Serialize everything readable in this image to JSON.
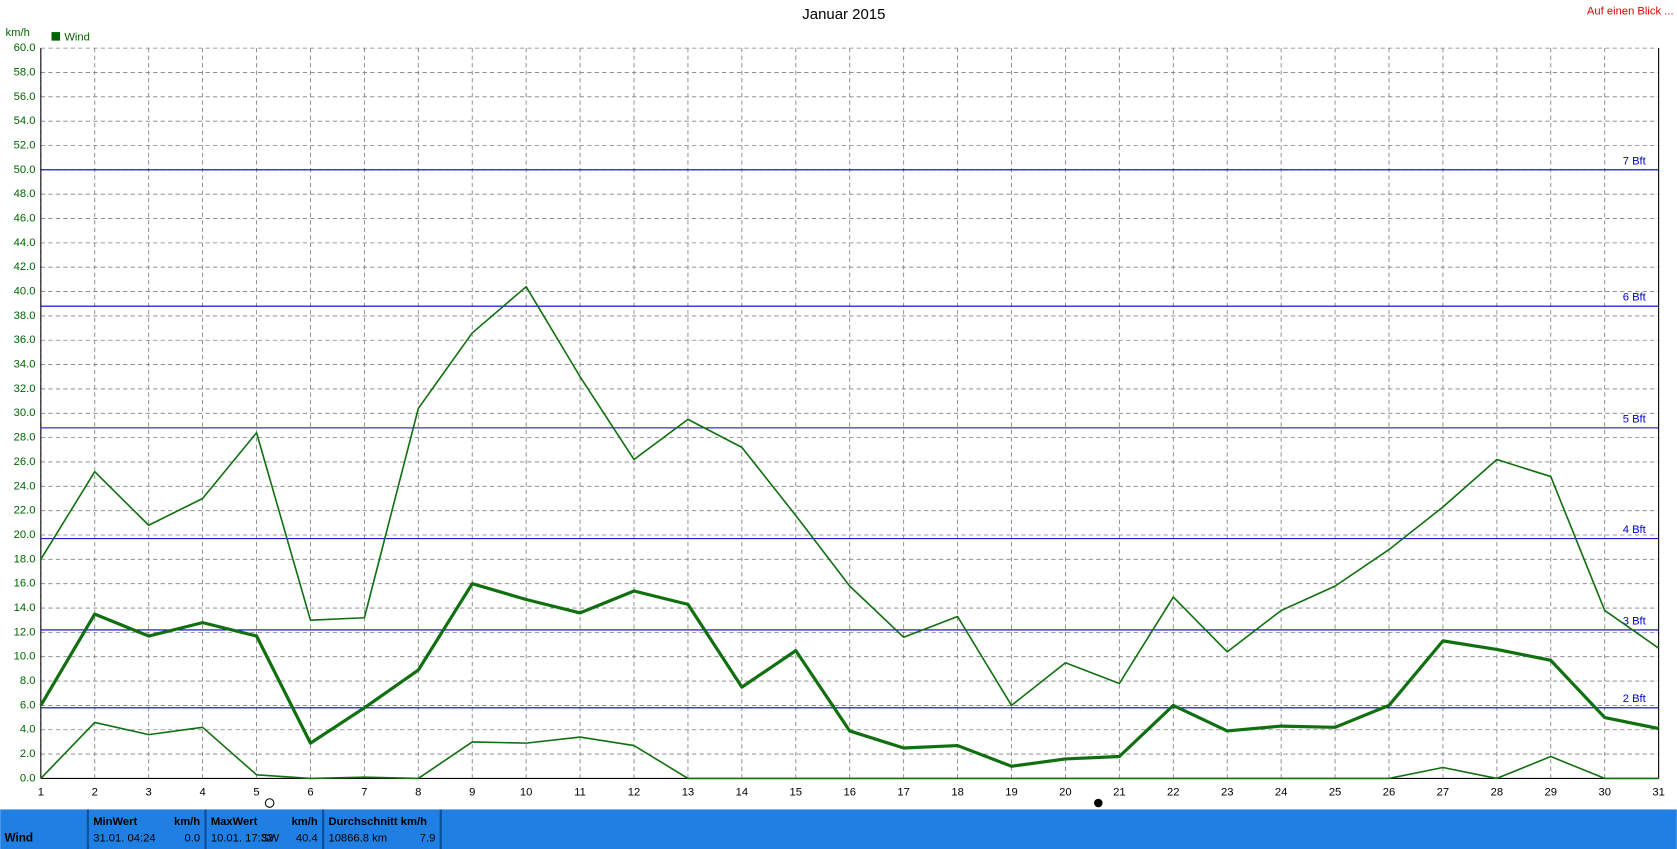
{
  "chart_data": {
    "type": "line",
    "title": "Januar 2015",
    "y_label": "km/h",
    "legend": "Wind",
    "legend_color": "#006400",
    "link": "Auf einen Blick ...",
    "x": [
      1,
      2,
      3,
      4,
      5,
      6,
      7,
      8,
      9,
      10,
      11,
      12,
      13,
      14,
      15,
      16,
      17,
      18,
      19,
      20,
      21,
      22,
      23,
      24,
      25,
      26,
      27,
      28,
      29,
      30,
      31
    ],
    "xlim": [
      1,
      31
    ],
    "ylim": [
      0,
      60
    ],
    "grid": true,
    "yticks": [
      {
        "value": 0,
        "label": "0.0"
      },
      {
        "value": 2,
        "label": "2.0"
      },
      {
        "value": 4,
        "label": "4.0"
      },
      {
        "value": 6,
        "label": "6.0"
      },
      {
        "value": 8,
        "label": "8.0"
      },
      {
        "value": 10,
        "label": "10.0"
      },
      {
        "value": 12,
        "label": "12.0"
      },
      {
        "value": 14,
        "label": "14.0"
      },
      {
        "value": 16,
        "label": "16.0"
      },
      {
        "value": 18,
        "label": "18.0"
      },
      {
        "value": 20,
        "label": "20.0"
      },
      {
        "value": 22,
        "label": "22.0"
      },
      {
        "value": 24,
        "label": "24.0"
      },
      {
        "value": 26,
        "label": "26.0"
      },
      {
        "value": 28,
        "label": "28.0"
      },
      {
        "value": 30,
        "label": "30.0"
      },
      {
        "value": 32,
        "label": "32.0"
      },
      {
        "value": 34,
        "label": "34.0"
      },
      {
        "value": 36,
        "label": "36.0"
      },
      {
        "value": 38,
        "label": "38.0"
      },
      {
        "value": 40,
        "label": "40.0"
      },
      {
        "value": 42,
        "label": "42.0"
      },
      {
        "value": 44,
        "label": "44.0"
      },
      {
        "value": 46,
        "label": "46.0"
      },
      {
        "value": 48,
        "label": "48.0"
      },
      {
        "value": 50,
        "label": "50.0"
      },
      {
        "value": 52,
        "label": "52.0"
      },
      {
        "value": 54,
        "label": "54.0"
      },
      {
        "value": 56,
        "label": "56.0"
      },
      {
        "value": 58,
        "label": "58.0"
      },
      {
        "value": 60,
        "label": "60.0"
      }
    ],
    "bft_lines": [
      {
        "value": 5.8,
        "label": "2 Bft"
      },
      {
        "value": 12.2,
        "label": "3 Bft"
      },
      {
        "value": 19.7,
        "label": "4 Bft"
      },
      {
        "value": 28.8,
        "label": "5 Bft"
      },
      {
        "value": 38.8,
        "label": "6 Bft"
      },
      {
        "value": 50.0,
        "label": "7 Bft"
      }
    ],
    "series": [
      {
        "color": "#107010",
        "width": 1.5,
        "values": [
          18.0,
          25.2,
          20.8,
          23.0,
          28.4,
          13.0,
          13.2,
          30.4,
          36.6,
          40.4,
          33.0,
          26.2,
          29.5,
          27.2,
          21.6,
          15.8,
          11.6,
          13.3,
          6.0,
          9.5,
          7.8,
          14.9,
          10.4,
          13.8,
          15.8,
          18.8,
          22.3,
          26.2,
          24.8,
          13.8,
          10.7
        ]
      },
      {
        "color": "#107010",
        "width": 3,
        "values": [
          6.0,
          13.5,
          11.7,
          12.8,
          11.7,
          2.9,
          5.8,
          8.9,
          16.0,
          14.7,
          13.6,
          15.4,
          14.3,
          7.5,
          10.5,
          3.9,
          2.5,
          2.7,
          1.0,
          1.6,
          1.8,
          6.0,
          3.9,
          4.3,
          4.2,
          6.0,
          11.3,
          10.6,
          9.7,
          5.0,
          4.1
        ]
      },
      {
        "color": "#107010",
        "width": 1.5,
        "values": [
          0.0,
          4.6,
          3.6,
          4.2,
          0.3,
          0.0,
          0.1,
          0.0,
          3.0,
          2.9,
          3.4,
          2.7,
          0.0,
          0.0,
          0.0,
          0.0,
          0.0,
          0.0,
          0.0,
          0.0,
          0.0,
          0.0,
          0.0,
          0.0,
          0.0,
          0.0,
          0.9,
          0.0,
          1.8,
          0.0,
          0.0
        ]
      }
    ]
  },
  "summary": {
    "label": "Wind",
    "columns": [
      {
        "header": [
          "MinWert",
          "km/h"
        ],
        "cells": [
          "31.01.  04:24",
          "0.0"
        ]
      },
      {
        "header": [
          "MaxWert",
          "km/h"
        ],
        "cells": [
          "10.01.  17:32",
          "SW",
          "40.4"
        ]
      },
      {
        "header": [
          "Durchschnitt km/h"
        ],
        "cells": [
          "10866.8 km",
          "7.9"
        ]
      }
    ]
  }
}
